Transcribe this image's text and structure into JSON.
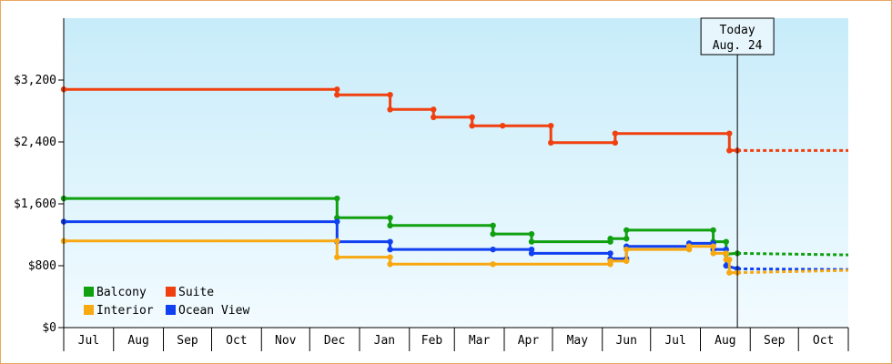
{
  "chart_data": {
    "type": "line",
    "step": true,
    "ylim": [
      0,
      4000
    ],
    "yticks": [
      0,
      800,
      1600,
      2400,
      3200
    ],
    "ytick_labels": [
      "$0",
      "$800",
      "$1,600",
      "$2,400",
      "$3,200"
    ],
    "xlim": [
      "2014-07-01",
      "2015-10-31"
    ],
    "month_labels": [
      "Jul",
      "Aug",
      "Sep",
      "Oct",
      "Nov",
      "Dec",
      "Jan",
      "Feb",
      "Mar",
      "Apr",
      "May",
      "Jun",
      "Jul",
      "Aug",
      "Sep",
      "Oct"
    ],
    "grid": false,
    "background_gradient": [
      "#c8ecfa",
      "#f2fbff"
    ],
    "legend_position": "bottom-left",
    "today": {
      "date": "2015-08-24",
      "label_line1": "Today",
      "label_line2": "Aug. 24"
    },
    "projection_end": "2015-10-31",
    "series": [
      {
        "name": "Suite",
        "color": "#f04010",
        "points": [
          [
            "2014-07-01",
            3080
          ],
          [
            "2014-12-18",
            3080
          ],
          [
            "2014-12-18",
            3010
          ],
          [
            "2015-01-20",
            3010
          ],
          [
            "2015-01-20",
            2820
          ],
          [
            "2015-02-16",
            2820
          ],
          [
            "2015-02-16",
            2720
          ],
          [
            "2015-03-12",
            2720
          ],
          [
            "2015-03-12",
            2610
          ],
          [
            "2015-03-31",
            2610
          ],
          [
            "2015-04-30",
            2610
          ],
          [
            "2015-04-30",
            2390
          ],
          [
            "2015-06-09",
            2390
          ],
          [
            "2015-06-09",
            2510
          ],
          [
            "2015-08-19",
            2510
          ],
          [
            "2015-08-19",
            2290
          ],
          [
            "2015-08-24",
            2290
          ]
        ],
        "projection_value": 2290
      },
      {
        "name": "Balcony",
        "color": "#10a010",
        "points": [
          [
            "2014-07-01",
            1670
          ],
          [
            "2014-12-18",
            1670
          ],
          [
            "2014-12-18",
            1420
          ],
          [
            "2015-01-20",
            1420
          ],
          [
            "2015-01-20",
            1320
          ],
          [
            "2015-03-25",
            1320
          ],
          [
            "2015-03-25",
            1210
          ],
          [
            "2015-04-18",
            1210
          ],
          [
            "2015-04-18",
            1110
          ],
          [
            "2015-06-06",
            1110
          ],
          [
            "2015-06-06",
            1150
          ],
          [
            "2015-06-16",
            1150
          ],
          [
            "2015-06-16",
            1260
          ],
          [
            "2015-08-09",
            1260
          ],
          [
            "2015-08-09",
            1110
          ],
          [
            "2015-08-17",
            1110
          ],
          [
            "2015-08-17",
            950
          ],
          [
            "2015-08-24",
            960
          ]
        ],
        "projection_value": 940
      },
      {
        "name": "Ocean View",
        "color": "#1040f0",
        "points": [
          [
            "2014-07-01",
            1370
          ],
          [
            "2014-12-18",
            1370
          ],
          [
            "2014-12-18",
            1110
          ],
          [
            "2015-01-20",
            1110
          ],
          [
            "2015-01-20",
            1010
          ],
          [
            "2015-03-25",
            1010
          ],
          [
            "2015-04-18",
            1010
          ],
          [
            "2015-04-18",
            960
          ],
          [
            "2015-06-06",
            960
          ],
          [
            "2015-06-06",
            890
          ],
          [
            "2015-06-16",
            890
          ],
          [
            "2015-06-16",
            1050
          ],
          [
            "2015-07-25",
            1050
          ],
          [
            "2015-07-25",
            1090
          ],
          [
            "2015-08-09",
            1090
          ],
          [
            "2015-08-09",
            1010
          ],
          [
            "2015-08-17",
            1010
          ],
          [
            "2015-08-17",
            800
          ],
          [
            "2015-08-24",
            760
          ]
        ],
        "projection_value": 750
      },
      {
        "name": "Interior",
        "color": "#f8a810",
        "points": [
          [
            "2014-07-01",
            1120
          ],
          [
            "2014-12-18",
            1120
          ],
          [
            "2014-12-18",
            910
          ],
          [
            "2015-01-20",
            910
          ],
          [
            "2015-01-20",
            820
          ],
          [
            "2015-03-25",
            820
          ],
          [
            "2015-06-06",
            820
          ],
          [
            "2015-06-06",
            860
          ],
          [
            "2015-06-16",
            860
          ],
          [
            "2015-06-16",
            1010
          ],
          [
            "2015-07-25",
            1010
          ],
          [
            "2015-07-25",
            1050
          ],
          [
            "2015-08-09",
            1050
          ],
          [
            "2015-08-09",
            960
          ],
          [
            "2015-08-17",
            960
          ],
          [
            "2015-08-17",
            880
          ],
          [
            "2015-08-19",
            880
          ],
          [
            "2015-08-19",
            710
          ],
          [
            "2015-08-24",
            710
          ]
        ],
        "projection_value": 740
      }
    ],
    "legend": [
      {
        "name": "Balcony",
        "color": "#10a010"
      },
      {
        "name": "Suite",
        "color": "#f04010"
      },
      {
        "name": "Interior",
        "color": "#f8a810"
      },
      {
        "name": "Ocean View",
        "color": "#1040f0"
      }
    ]
  }
}
